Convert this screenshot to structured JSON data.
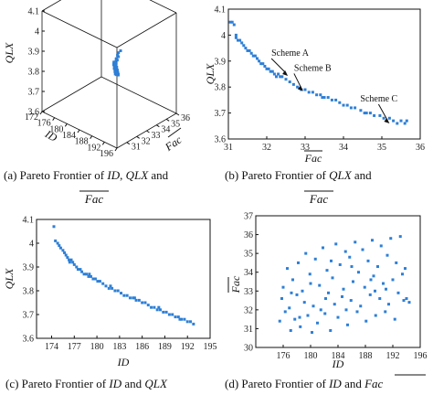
{
  "chart_data": [
    {
      "panel": "a",
      "type": "scatter3d",
      "caption_parts": [
        "(a) Pareto Frontier of ",
        "ID",
        ", ",
        "QLX",
        " and"
      ],
      "caption_line2": "Fac",
      "xlabel": "ID",
      "ylabel": "Fac",
      "zlabel": "QLX",
      "x_ticks": [
        172,
        176,
        180,
        184,
        188,
        192,
        196
      ],
      "y_ticks": [
        31,
        32,
        33,
        34,
        35,
        36
      ],
      "z_ticks": [
        3.6,
        3.7,
        3.8,
        3.9,
        4.0,
        4.1
      ],
      "xlim": [
        172,
        196
      ],
      "ylim": [
        30,
        36
      ],
      "zlim": [
        3.6,
        4.1
      ],
      "color": "#2e7fd6",
      "points": [
        [
          178,
          35.8,
          3.66
        ],
        [
          178,
          35.6,
          3.67
        ],
        [
          179,
          35.5,
          3.68
        ],
        [
          179,
          35.2,
          3.69
        ],
        [
          180,
          35.0,
          3.7
        ],
        [
          180,
          34.9,
          3.71
        ],
        [
          181,
          34.8,
          3.72
        ],
        [
          181,
          34.6,
          3.73
        ],
        [
          182,
          34.5,
          3.74
        ],
        [
          182,
          34.3,
          3.75
        ],
        [
          183,
          34.1,
          3.76
        ],
        [
          183,
          33.9,
          3.77
        ],
        [
          184,
          33.8,
          3.78
        ],
        [
          184,
          33.6,
          3.79
        ],
        [
          185,
          33.5,
          3.8
        ],
        [
          185,
          33.3,
          3.81
        ],
        [
          186,
          33.2,
          3.82
        ],
        [
          186,
          33.0,
          3.83
        ],
        [
          186,
          32.9,
          3.84
        ],
        [
          187,
          32.8,
          3.85
        ],
        [
          187,
          32.6,
          3.86
        ],
        [
          188,
          32.5,
          3.87
        ],
        [
          188,
          32.3,
          3.88
        ],
        [
          188,
          32.2,
          3.89
        ],
        [
          189,
          32.0,
          3.9
        ],
        [
          189,
          31.9,
          3.91
        ],
        [
          190,
          31.8,
          3.92
        ],
        [
          190,
          31.6,
          3.93
        ],
        [
          191,
          31.5,
          3.94
        ],
        [
          191,
          31.4,
          3.95
        ],
        [
          192,
          31.3,
          3.97
        ],
        [
          192,
          31.2,
          3.98
        ],
        [
          193,
          31.1,
          4.0
        ],
        [
          193,
          31.1,
          4.02
        ],
        [
          194,
          31.0,
          4.04
        ],
        [
          181,
          34.7,
          3.72
        ],
        [
          183,
          34.0,
          3.77
        ],
        [
          185,
          33.4,
          3.81
        ],
        [
          187,
          32.7,
          3.86
        ],
        [
          189,
          31.9,
          3.92
        ],
        [
          184,
          33.7,
          3.78
        ],
        [
          186,
          33.1,
          3.83
        ],
        [
          182,
          34.4,
          3.74
        ],
        [
          190,
          31.7,
          3.93
        ],
        [
          188,
          32.4,
          3.88
        ],
        [
          179,
          35.3,
          3.69
        ],
        [
          186,
          33.0,
          3.85
        ],
        [
          185,
          33.2,
          3.82
        ],
        [
          191,
          31.5,
          3.96
        ],
        [
          193,
          31.0,
          4.01
        ]
      ]
    },
    {
      "panel": "b",
      "type": "scatter",
      "caption_parts": [
        "(b) Pareto Frontier of ",
        "QLX",
        " and"
      ],
      "caption_line2": "Fac",
      "xlabel": "Fac",
      "ylabel": "QLX",
      "xlim": [
        31,
        36
      ],
      "ylim": [
        3.6,
        4.1
      ],
      "x_ticks": [
        31,
        32,
        33,
        34,
        35,
        36
      ],
      "y_ticks": [
        3.6,
        3.7,
        3.8,
        3.9,
        4.0,
        4.1
      ],
      "color": "#2e7fd6",
      "annotations": [
        {
          "label": "Scheme A",
          "x": 32.55,
          "y": 3.843
        },
        {
          "label": "Scheme B",
          "x": 32.95,
          "y": 3.785
        },
        {
          "label": "Scheme C",
          "x": 35.2,
          "y": 3.66
        }
      ],
      "points": [
        [
          31.05,
          4.05
        ],
        [
          31.1,
          4.05
        ],
        [
          31.15,
          4.04
        ],
        [
          31.2,
          4.0
        ],
        [
          31.2,
          3.99
        ],
        [
          31.25,
          3.98
        ],
        [
          31.3,
          3.98
        ],
        [
          31.35,
          3.97
        ],
        [
          31.4,
          3.96
        ],
        [
          31.45,
          3.95
        ],
        [
          31.5,
          3.94
        ],
        [
          31.55,
          3.94
        ],
        [
          31.6,
          3.93
        ],
        [
          31.7,
          3.92
        ],
        [
          31.75,
          3.91
        ],
        [
          31.8,
          3.9
        ],
        [
          31.85,
          3.89
        ],
        [
          31.9,
          3.89
        ],
        [
          31.95,
          3.88
        ],
        [
          32.0,
          3.87
        ],
        [
          32.05,
          3.87
        ],
        [
          32.1,
          3.86
        ],
        [
          32.15,
          3.86
        ],
        [
          32.2,
          3.85
        ],
        [
          32.3,
          3.85
        ],
        [
          32.35,
          3.84
        ],
        [
          32.4,
          3.84
        ],
        [
          32.5,
          3.83
        ],
        [
          32.6,
          3.82
        ],
        [
          32.7,
          3.81
        ],
        [
          32.8,
          3.8
        ],
        [
          32.9,
          3.79
        ],
        [
          33.0,
          3.79
        ],
        [
          33.1,
          3.78
        ],
        [
          33.2,
          3.78
        ],
        [
          33.3,
          3.77
        ],
        [
          33.4,
          3.77
        ],
        [
          33.5,
          3.76
        ],
        [
          33.6,
          3.76
        ],
        [
          33.7,
          3.75
        ],
        [
          33.8,
          3.75
        ],
        [
          33.9,
          3.74
        ],
        [
          34.0,
          3.73
        ],
        [
          34.1,
          3.73
        ],
        [
          34.2,
          3.72
        ],
        [
          34.3,
          3.72
        ],
        [
          34.45,
          3.71
        ],
        [
          34.6,
          3.7
        ],
        [
          34.7,
          3.7
        ],
        [
          34.8,
          3.69
        ],
        [
          34.95,
          3.69
        ],
        [
          35.05,
          3.68
        ],
        [
          35.2,
          3.68
        ],
        [
          35.3,
          3.67
        ],
        [
          35.4,
          3.66
        ],
        [
          35.5,
          3.67
        ],
        [
          35.6,
          3.66
        ],
        [
          35.65,
          3.67
        ],
        [
          32.25,
          3.84
        ],
        [
          33.45,
          3.76
        ],
        [
          34.55,
          3.7
        ],
        [
          31.65,
          3.92
        ]
      ]
    },
    {
      "panel": "c",
      "type": "scatter",
      "caption_parts": [
        "(c) Pareto Frontier of ",
        "ID",
        " and ",
        "QLX"
      ],
      "xlabel": "ID",
      "ylabel": "QLX",
      "xlim": [
        172,
        195
      ],
      "ylim": [
        3.6,
        4.1
      ],
      "x_ticks": [
        174,
        177,
        180,
        183,
        186,
        189,
        192,
        195
      ],
      "y_ticks": [
        3.6,
        3.7,
        3.8,
        3.9,
        4.0,
        4.1
      ],
      "color": "#2e7fd6",
      "points": [
        [
          174.3,
          4.07
        ],
        [
          174.5,
          4.01
        ],
        [
          174.8,
          4.0
        ],
        [
          175.0,
          3.99
        ],
        [
          175.2,
          3.98
        ],
        [
          175.5,
          3.97
        ],
        [
          175.7,
          3.96
        ],
        [
          175.9,
          3.95
        ],
        [
          176.1,
          3.94
        ],
        [
          176.3,
          3.93
        ],
        [
          176.6,
          3.93
        ],
        [
          176.8,
          3.92
        ],
        [
          177.0,
          3.91
        ],
        [
          177.3,
          3.9
        ],
        [
          177.5,
          3.89
        ],
        [
          177.8,
          3.89
        ],
        [
          178.0,
          3.88
        ],
        [
          178.3,
          3.87
        ],
        [
          178.6,
          3.87
        ],
        [
          178.9,
          3.86
        ],
        [
          179.2,
          3.86
        ],
        [
          179.5,
          3.85
        ],
        [
          179.8,
          3.85
        ],
        [
          180.1,
          3.84
        ],
        [
          180.4,
          3.84
        ],
        [
          180.8,
          3.83
        ],
        [
          181.2,
          3.82
        ],
        [
          181.6,
          3.81
        ],
        [
          182.0,
          3.81
        ],
        [
          182.4,
          3.8
        ],
        [
          182.8,
          3.8
        ],
        [
          183.2,
          3.79
        ],
        [
          183.6,
          3.78
        ],
        [
          184.0,
          3.78
        ],
        [
          184.4,
          3.77
        ],
        [
          184.8,
          3.77
        ],
        [
          185.2,
          3.76
        ],
        [
          185.6,
          3.76
        ],
        [
          186.0,
          3.75
        ],
        [
          186.4,
          3.75
        ],
        [
          186.8,
          3.74
        ],
        [
          187.2,
          3.73
        ],
        [
          187.6,
          3.73
        ],
        [
          188.0,
          3.72
        ],
        [
          188.4,
          3.72
        ],
        [
          188.8,
          3.71
        ],
        [
          189.2,
          3.71
        ],
        [
          189.6,
          3.7
        ],
        [
          190.0,
          3.7
        ],
        [
          190.4,
          3.69
        ],
        [
          190.8,
          3.69
        ],
        [
          191.2,
          3.68
        ],
        [
          191.6,
          3.68
        ],
        [
          192.0,
          3.67
        ],
        [
          192.4,
          3.67
        ],
        [
          192.8,
          3.66
        ],
        [
          176.4,
          3.92
        ],
        [
          179.0,
          3.87
        ],
        [
          181.8,
          3.82
        ],
        [
          185.0,
          3.77
        ],
        [
          188.2,
          3.73
        ],
        [
          191.0,
          3.68
        ]
      ]
    },
    {
      "panel": "d",
      "type": "scatter",
      "caption_parts": [
        "(d) Pareto Frontier of ",
        "ID",
        " and "
      ],
      "caption_tail": "Fac",
      "xlabel": "ID",
      "ylabel": "Fac",
      "xlim": [
        172,
        196
      ],
      "ylim": [
        30,
        37
      ],
      "x_ticks": [
        176,
        180,
        184,
        188,
        192,
        196
      ],
      "y_ticks": [
        30,
        31,
        32,
        33,
        34,
        35,
        36,
        37
      ],
      "color": "#2e7fd6",
      "points": [
        [
          175.5,
          31.4
        ],
        [
          175.8,
          32.6
        ],
        [
          176.0,
          33.2
        ],
        [
          176.3,
          31.9
        ],
        [
          176.6,
          34.2
        ],
        [
          176.9,
          32.1
        ],
        [
          177.1,
          30.9
        ],
        [
          177.4,
          33.6
        ],
        [
          177.7,
          31.5
        ],
        [
          178.0,
          32.8
        ],
        [
          178.2,
          34.5
        ],
        [
          178.5,
          31.1
        ],
        [
          178.8,
          33.0
        ],
        [
          179.1,
          32.4
        ],
        [
          179.3,
          35.0
        ],
        [
          179.6,
          31.7
        ],
        [
          179.9,
          33.9
        ],
        [
          180.2,
          30.8
        ],
        [
          180.4,
          32.2
        ],
        [
          180.7,
          34.7
        ],
        [
          181.0,
          31.3
        ],
        [
          181.3,
          33.3
        ],
        [
          181.5,
          32.0
        ],
        [
          181.8,
          35.3
        ],
        [
          182.1,
          31.8
        ],
        [
          182.4,
          34.1
        ],
        [
          182.6,
          32.9
        ],
        [
          182.9,
          30.9
        ],
        [
          183.2,
          33.7
        ],
        [
          183.5,
          32.3
        ],
        [
          183.7,
          35.5
        ],
        [
          184.0,
          31.6
        ],
        [
          184.3,
          34.4
        ],
        [
          184.6,
          32.7
        ],
        [
          184.8,
          33.1
        ],
        [
          185.1,
          35.1
        ],
        [
          185.4,
          31.2
        ],
        [
          185.7,
          34.8
        ],
        [
          185.9,
          32.5
        ],
        [
          186.2,
          33.5
        ],
        [
          186.5,
          35.6
        ],
        [
          186.8,
          31.9
        ],
        [
          187.0,
          34.0
        ],
        [
          187.3,
          32.2
        ],
        [
          187.6,
          35.2
        ],
        [
          187.9,
          33.2
        ],
        [
          188.1,
          31.4
        ],
        [
          188.4,
          34.6
        ],
        [
          188.7,
          32.8
        ],
        [
          189.0,
          35.7
        ],
        [
          189.2,
          33.8
        ],
        [
          189.5,
          31.7
        ],
        [
          189.8,
          34.3
        ],
        [
          190.1,
          32.6
        ],
        [
          190.3,
          35.4
        ],
        [
          190.6,
          33.4
        ],
        [
          190.9,
          31.9
        ],
        [
          191.2,
          34.9
        ],
        [
          191.4,
          32.3
        ],
        [
          191.7,
          35.8
        ],
        [
          192.0,
          33.6
        ],
        [
          192.3,
          31.5
        ],
        [
          192.5,
          34.5
        ],
        [
          192.8,
          32.9
        ],
        [
          193.1,
          35.9
        ],
        [
          193.4,
          33.9
        ],
        [
          193.6,
          32.5
        ],
        [
          194.0,
          32.6
        ],
        [
          194.4,
          32.4
        ],
        [
          193.8,
          34.2
        ],
        [
          177.2,
          32.9
        ],
        [
          180.0,
          33.4
        ],
        [
          183.0,
          34.6
        ],
        [
          186.0,
          34.3
        ],
        [
          189.4,
          33.0
        ],
        [
          191.0,
          33.1
        ],
        [
          178.4,
          31.6
        ],
        [
          182.2,
          32.6
        ],
        [
          185.2,
          32.0
        ],
        [
          188.8,
          33.6
        ]
      ]
    }
  ]
}
